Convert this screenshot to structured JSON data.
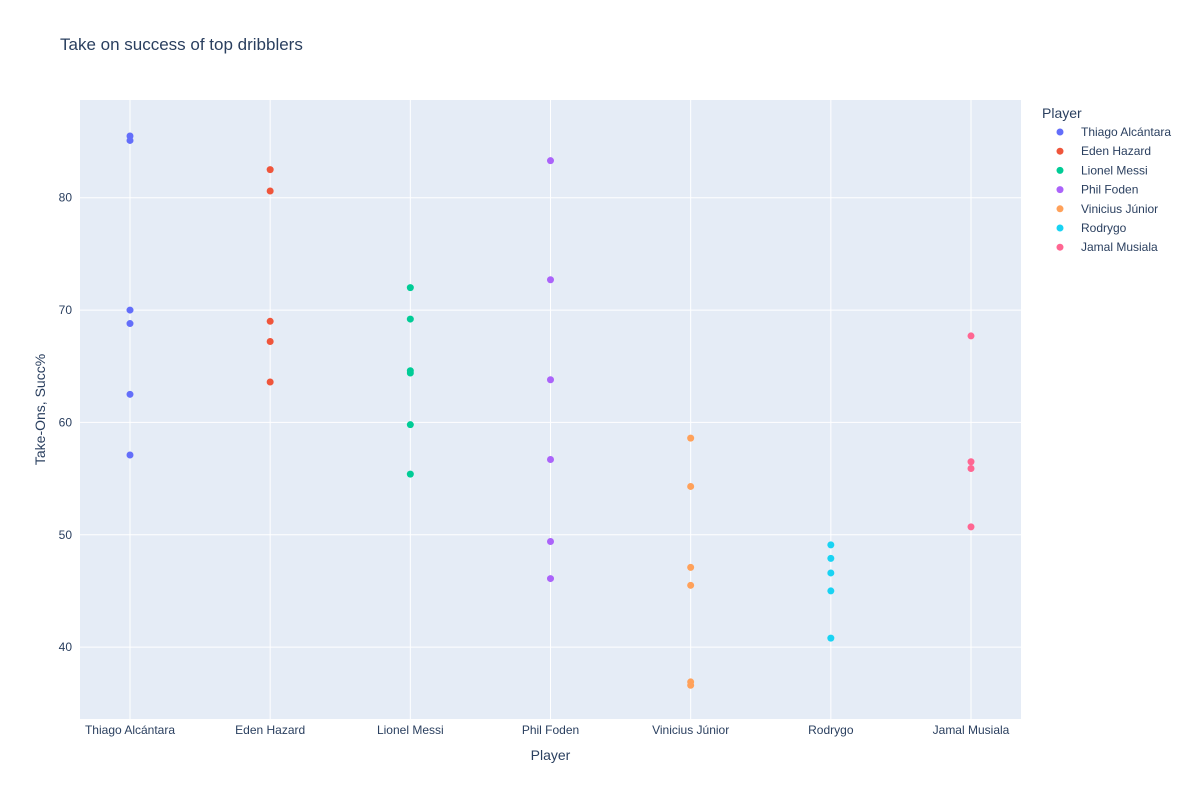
{
  "chart_data": {
    "type": "scatter",
    "title": "Take on success of top dribblers",
    "xlabel": "Player",
    "ylabel": "Take-Ons, Succ%",
    "categories": [
      "Thiago Alcántara",
      "Eden Hazard",
      "Lionel Messi",
      "Phil Foden",
      "Vinicius Júnior",
      "Rodrygo",
      "Jamal Musiala"
    ],
    "ylim": [
      33.6,
      88.7
    ],
    "yticks": [
      40,
      50,
      60,
      70,
      80
    ],
    "grid": true,
    "legend": {
      "title": "Player",
      "position": "top-right outside"
    },
    "plot_bg": "#e5ecf6",
    "series": [
      {
        "name": "Thiago Alcántara",
        "color": "#636efa",
        "x": "Thiago Alcántara",
        "values": [
          85.5,
          85.1,
          70.0,
          68.8,
          62.5,
          57.1
        ]
      },
      {
        "name": "Eden Hazard",
        "color": "#ef553b",
        "x": "Eden Hazard",
        "values": [
          82.5,
          80.6,
          69.0,
          67.2,
          63.6
        ]
      },
      {
        "name": "Lionel Messi",
        "color": "#00cc96",
        "x": "Lionel Messi",
        "values": [
          72.0,
          69.2,
          64.6,
          64.4,
          59.8,
          55.4
        ]
      },
      {
        "name": "Phil Foden",
        "color": "#ab63fa",
        "x": "Phil Foden",
        "values": [
          83.3,
          72.7,
          63.8,
          56.7,
          49.4,
          46.1
        ]
      },
      {
        "name": "Vinicius Júnior",
        "color": "#ffa15a",
        "x": "Vinicius Júnior",
        "values": [
          58.6,
          54.3,
          47.1,
          45.5,
          36.9,
          36.6
        ]
      },
      {
        "name": "Rodrygo",
        "color": "#19d3f3",
        "x": "Rodrygo",
        "values": [
          49.1,
          47.9,
          46.6,
          45.0,
          40.8
        ]
      },
      {
        "name": "Jamal Musiala",
        "color": "#ff6692",
        "x": "Jamal Musiala",
        "values": [
          67.7,
          56.5,
          55.9,
          50.7
        ]
      }
    ]
  }
}
